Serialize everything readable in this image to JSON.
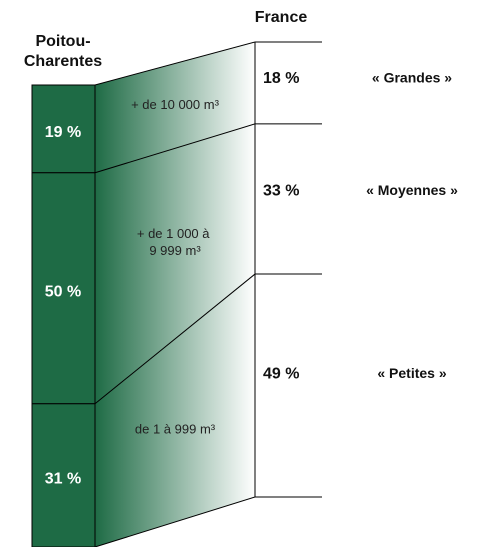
{
  "chart_data": {
    "type": "stacked_bar",
    "categories": [
      "Poitou-Charentes",
      "France"
    ],
    "color": "#1e6b45",
    "series": [
      {
        "name": "« Grandes »",
        "description": "+ de 10 000 m³",
        "values": [
          19,
          18
        ],
        "value_labels": [
          "19 %",
          "18 %"
        ]
      },
      {
        "name": "« Moyennes »",
        "description": "+ de 1 000 à\n9 999 m³",
        "values": [
          50,
          33
        ],
        "value_labels": [
          "50 %",
          "33 %"
        ]
      },
      {
        "name": "« Petites »",
        "description": "de 1 à 999 m³",
        "values": [
          31,
          49
        ],
        "value_labels": [
          "31 %",
          "49 %"
        ]
      }
    ]
  }
}
